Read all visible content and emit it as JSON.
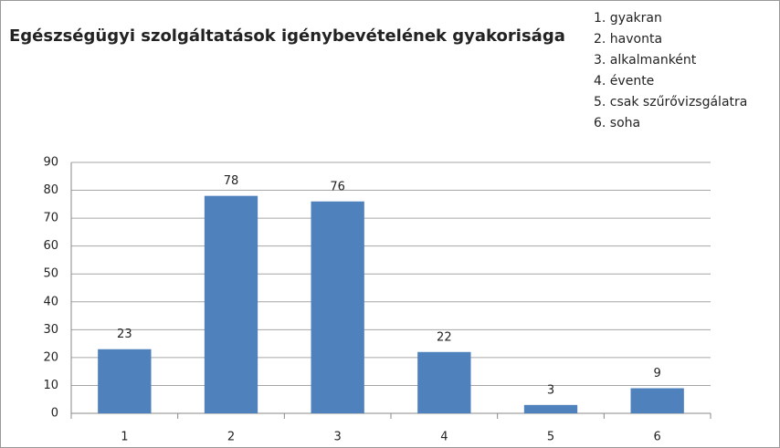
{
  "chart_data": {
    "type": "bar",
    "title": "Egészségügyi szolgáltatások igénybevételének gyakorisága",
    "annotations": [
      "1. gyakran",
      "2. havonta",
      "3. alkalmanként",
      "4. évente",
      "5. csak szűrővizsgálatra",
      "6. soha"
    ],
    "categories": [
      "1",
      "2",
      "3",
      "4",
      "5",
      "6"
    ],
    "values": [
      23,
      78,
      76,
      22,
      3,
      9
    ],
    "color": "#4f81bd",
    "ylim": [
      0,
      90
    ],
    "yticks": [
      0,
      10,
      20,
      30,
      40,
      50,
      60,
      70,
      80,
      90
    ],
    "grid": true
  }
}
